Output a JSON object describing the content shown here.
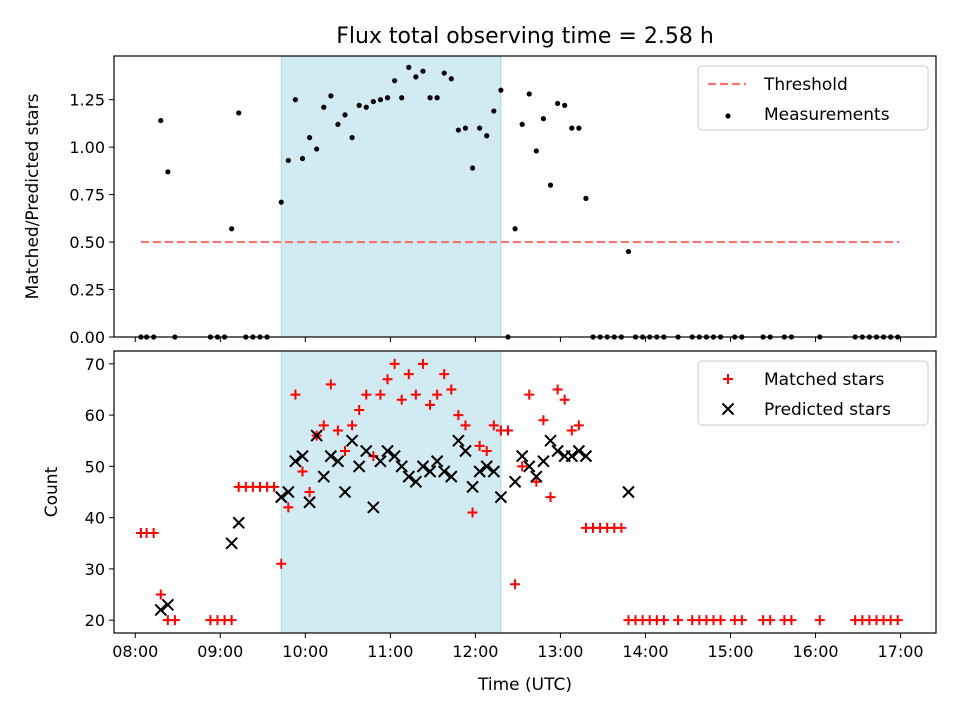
{
  "title": "Flux total observing time = 2.58 h",
  "colors": {
    "threshold": "#ff7070",
    "measurement": "#000000",
    "matched": "#ff0000",
    "predicted": "#000000",
    "shade": "#add8e6"
  },
  "chart_data": [
    {
      "type": "scatter",
      "ylabel": "Matched/Predicted stars",
      "xlabel": "",
      "xlim": [
        "07:45",
        "17:25"
      ],
      "ylim": [
        0,
        1.48
      ],
      "yticks": [
        "0.00",
        "0.25",
        "0.50",
        "0.75",
        "1.00",
        "1.25"
      ],
      "shaded_interval": [
        "09:43",
        "12:18"
      ],
      "legend_position": "top-right",
      "threshold": {
        "name": "Threshold",
        "y": 0.5,
        "x_range": [
          "08:04",
          "16:59"
        ],
        "style": "dashed"
      },
      "series": [
        {
          "name": "Measurements",
          "style": "dot",
          "points": [
            [
              "08:04",
              0
            ],
            [
              "08:08",
              0
            ],
            [
              "08:13",
              0
            ],
            [
              "08:18",
              1.14
            ],
            [
              "08:23",
              0.87
            ],
            [
              "08:28",
              0
            ],
            [
              "08:53",
              0
            ],
            [
              "08:58",
              0
            ],
            [
              "09:03",
              0
            ],
            [
              "09:08",
              0.57
            ],
            [
              "09:13",
              1.18
            ],
            [
              "09:18",
              0
            ],
            [
              "09:23",
              0
            ],
            [
              "09:28",
              0
            ],
            [
              "09:33",
              0
            ],
            [
              "09:43",
              0.71
            ],
            [
              "09:48",
              0.93
            ],
            [
              "09:53",
              1.25
            ],
            [
              "09:58",
              0.94
            ],
            [
              "10:03",
              1.05
            ],
            [
              "10:08",
              0.99
            ],
            [
              "10:13",
              1.21
            ],
            [
              "10:18",
              1.27
            ],
            [
              "10:23",
              1.12
            ],
            [
              "10:28",
              1.17
            ],
            [
              "10:33",
              1.05
            ],
            [
              "10:38",
              1.22
            ],
            [
              "10:43",
              1.21
            ],
            [
              "10:48",
              1.24
            ],
            [
              "10:53",
              1.25
            ],
            [
              "10:58",
              1.26
            ],
            [
              "11:03",
              1.35
            ],
            [
              "11:08",
              1.26
            ],
            [
              "11:13",
              1.42
            ],
            [
              "11:18",
              1.37
            ],
            [
              "11:23",
              1.4
            ],
            [
              "11:28",
              1.26
            ],
            [
              "11:33",
              1.26
            ],
            [
              "11:38",
              1.39
            ],
            [
              "11:43",
              1.36
            ],
            [
              "11:48",
              1.09
            ],
            [
              "11:53",
              1.1
            ],
            [
              "11:58",
              0.89
            ],
            [
              "12:03",
              1.1
            ],
            [
              "12:08",
              1.06
            ],
            [
              "12:13",
              1.19
            ],
            [
              "12:18",
              1.3
            ],
            [
              "12:23",
              0
            ],
            [
              "12:28",
              0.57
            ],
            [
              "12:33",
              1.12
            ],
            [
              "12:38",
              1.28
            ],
            [
              "12:43",
              0.98
            ],
            [
              "12:48",
              1.15
            ],
            [
              "12:53",
              0.8
            ],
            [
              "12:58",
              1.23
            ],
            [
              "13:03",
              1.22
            ],
            [
              "13:08",
              1.1
            ],
            [
              "13:13",
              1.1
            ],
            [
              "13:18",
              0.73
            ],
            [
              "13:23",
              0
            ],
            [
              "13:28",
              0
            ],
            [
              "13:33",
              0
            ],
            [
              "13:38",
              0
            ],
            [
              "13:43",
              0
            ],
            [
              "13:48",
              0.45
            ],
            [
              "13:53",
              0
            ],
            [
              "13:58",
              0
            ],
            [
              "14:03",
              0
            ],
            [
              "14:08",
              0
            ],
            [
              "14:13",
              0
            ],
            [
              "14:23",
              0
            ],
            [
              "14:33",
              0
            ],
            [
              "14:38",
              0
            ],
            [
              "14:43",
              0
            ],
            [
              "14:48",
              0
            ],
            [
              "14:53",
              0
            ],
            [
              "15:03",
              0
            ],
            [
              "15:08",
              0
            ],
            [
              "15:23",
              0
            ],
            [
              "15:28",
              0
            ],
            [
              "15:38",
              0
            ],
            [
              "15:43",
              0
            ],
            [
              "16:03",
              0
            ],
            [
              "16:28",
              0
            ],
            [
              "16:33",
              0
            ],
            [
              "16:38",
              0
            ],
            [
              "16:43",
              0
            ],
            [
              "16:48",
              0
            ],
            [
              "16:53",
              0
            ],
            [
              "16:58",
              0
            ]
          ]
        }
      ]
    },
    {
      "type": "scatter",
      "ylabel": "Count",
      "xlabel": "Time (UTC)",
      "xlim": [
        "07:45",
        "17:25"
      ],
      "ylim": [
        17.5,
        72.5
      ],
      "yticks": [
        "20",
        "30",
        "40",
        "50",
        "60",
        "70"
      ],
      "xticks": [
        "08:00",
        "09:00",
        "10:00",
        "11:00",
        "12:00",
        "13:00",
        "14:00",
        "15:00",
        "16:00",
        "17:00"
      ],
      "shaded_interval": [
        "09:43",
        "12:18"
      ],
      "legend_position": "top-right",
      "series": [
        {
          "name": "Matched stars",
          "style": "plus",
          "points": [
            [
              "08:04",
              37
            ],
            [
              "08:08",
              37
            ],
            [
              "08:13",
              37
            ],
            [
              "08:18",
              25
            ],
            [
              "08:23",
              20
            ],
            [
              "08:28",
              20
            ],
            [
              "08:53",
              20
            ],
            [
              "08:58",
              20
            ],
            [
              "09:03",
              20
            ],
            [
              "09:08",
              20
            ],
            [
              "09:13",
              46
            ],
            [
              "09:18",
              46
            ],
            [
              "09:23",
              46
            ],
            [
              "09:28",
              46
            ],
            [
              "09:33",
              46
            ],
            [
              "09:38",
              46
            ],
            [
              "09:43",
              31
            ],
            [
              "09:48",
              42
            ],
            [
              "09:53",
              64
            ],
            [
              "09:58",
              49
            ],
            [
              "10:03",
              45
            ],
            [
              "10:08",
              56
            ],
            [
              "10:13",
              58
            ],
            [
              "10:18",
              66
            ],
            [
              "10:23",
              57
            ],
            [
              "10:28",
              53
            ],
            [
              "10:33",
              58
            ],
            [
              "10:38",
              61
            ],
            [
              "10:43",
              64
            ],
            [
              "10:48",
              52
            ],
            [
              "10:53",
              64
            ],
            [
              "10:58",
              67
            ],
            [
              "11:03",
              70
            ],
            [
              "11:08",
              63
            ],
            [
              "11:13",
              68
            ],
            [
              "11:18",
              64
            ],
            [
              "11:23",
              70
            ],
            [
              "11:28",
              62
            ],
            [
              "11:33",
              64
            ],
            [
              "11:38",
              68
            ],
            [
              "11:43",
              65
            ],
            [
              "11:48",
              60
            ],
            [
              "11:53",
              58
            ],
            [
              "11:58",
              41
            ],
            [
              "12:03",
              54
            ],
            [
              "12:08",
              53
            ],
            [
              "12:13",
              58
            ],
            [
              "12:18",
              57
            ],
            [
              "12:23",
              57
            ],
            [
              "12:28",
              27
            ],
            [
              "12:33",
              50
            ],
            [
              "12:38",
              64
            ],
            [
              "12:43",
              47
            ],
            [
              "12:48",
              59
            ],
            [
              "12:53",
              44
            ],
            [
              "12:58",
              65
            ],
            [
              "13:03",
              63
            ],
            [
              "13:08",
              57
            ],
            [
              "13:13",
              58
            ],
            [
              "13:18",
              38
            ],
            [
              "13:23",
              38
            ],
            [
              "13:28",
              38
            ],
            [
              "13:33",
              38
            ],
            [
              "13:38",
              38
            ],
            [
              "13:43",
              38
            ],
            [
              "13:48",
              20
            ],
            [
              "13:53",
              20
            ],
            [
              "13:58",
              20
            ],
            [
              "14:03",
              20
            ],
            [
              "14:08",
              20
            ],
            [
              "14:13",
              20
            ],
            [
              "14:23",
              20
            ],
            [
              "14:33",
              20
            ],
            [
              "14:38",
              20
            ],
            [
              "14:43",
              20
            ],
            [
              "14:48",
              20
            ],
            [
              "14:53",
              20
            ],
            [
              "15:03",
              20
            ],
            [
              "15:08",
              20
            ],
            [
              "15:23",
              20
            ],
            [
              "15:28",
              20
            ],
            [
              "15:38",
              20
            ],
            [
              "15:43",
              20
            ],
            [
              "16:03",
              20
            ],
            [
              "16:28",
              20
            ],
            [
              "16:33",
              20
            ],
            [
              "16:38",
              20
            ],
            [
              "16:43",
              20
            ],
            [
              "16:48",
              20
            ],
            [
              "16:53",
              20
            ],
            [
              "16:58",
              20
            ]
          ]
        },
        {
          "name": "Predicted stars",
          "style": "x",
          "points": [
            [
              "08:18",
              22
            ],
            [
              "08:23",
              23
            ],
            [
              "09:08",
              35
            ],
            [
              "09:13",
              39
            ],
            [
              "09:43",
              44
            ],
            [
              "09:48",
              45
            ],
            [
              "09:53",
              51
            ],
            [
              "09:58",
              52
            ],
            [
              "10:03",
              43
            ],
            [
              "10:08",
              56
            ],
            [
              "10:13",
              48
            ],
            [
              "10:18",
              52
            ],
            [
              "10:23",
              51
            ],
            [
              "10:28",
              45
            ],
            [
              "10:33",
              55
            ],
            [
              "10:38",
              50
            ],
            [
              "10:43",
              53
            ],
            [
              "10:48",
              42
            ],
            [
              "10:53",
              51
            ],
            [
              "10:58",
              53
            ],
            [
              "11:03",
              52
            ],
            [
              "11:08",
              50
            ],
            [
              "11:13",
              48
            ],
            [
              "11:18",
              47
            ],
            [
              "11:23",
              50
            ],
            [
              "11:28",
              49
            ],
            [
              "11:33",
              51
            ],
            [
              "11:38",
              49
            ],
            [
              "11:43",
              48
            ],
            [
              "11:48",
              55
            ],
            [
              "11:53",
              53
            ],
            [
              "11:58",
              46
            ],
            [
              "12:03",
              49
            ],
            [
              "12:08",
              50
            ],
            [
              "12:13",
              49
            ],
            [
              "12:18",
              44
            ],
            [
              "12:28",
              47
            ],
            [
              "12:33",
              52
            ],
            [
              "12:38",
              50
            ],
            [
              "12:43",
              48
            ],
            [
              "12:48",
              51
            ],
            [
              "12:53",
              55
            ],
            [
              "12:58",
              53
            ],
            [
              "13:03",
              52
            ],
            [
              "13:08",
              52
            ],
            [
              "13:13",
              53
            ],
            [
              "13:18",
              52
            ],
            [
              "13:48",
              45
            ]
          ]
        }
      ]
    }
  ]
}
